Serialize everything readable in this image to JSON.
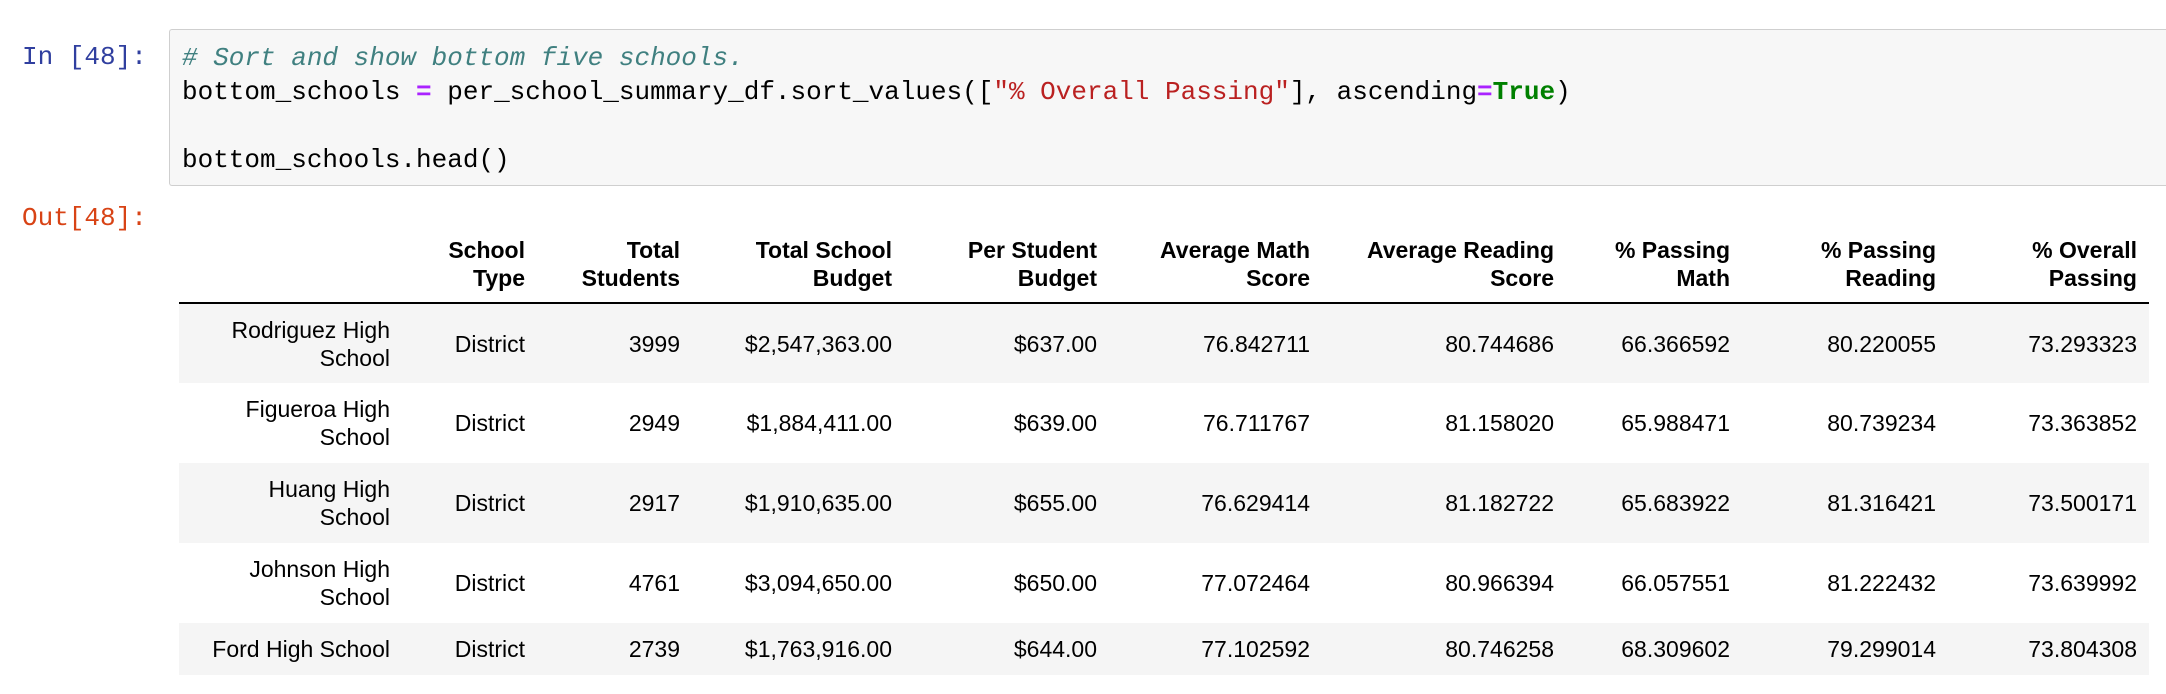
{
  "cell": {
    "in_prompt": "In [48]:",
    "out_prompt": "Out[48]:",
    "code": {
      "comment": "# Sort and show bottom five schools.",
      "var": "bottom_schools",
      "assign": "=",
      "expr_start": "per_school_summary_df.sort_values([",
      "string": "\"% Overall Passing\"",
      "expr_mid": "], ascending",
      "eq": "=",
      "keyword": "True",
      "expr_end": ")",
      "line3": "bottom_schools.head()"
    }
  },
  "table": {
    "columns": [
      {
        "line1": "",
        "line2": ""
      },
      {
        "line1": "School",
        "line2": "Type"
      },
      {
        "line1": "Total",
        "line2": "Students"
      },
      {
        "line1": "Total School",
        "line2": "Budget"
      },
      {
        "line1": "Per Student",
        "line2": "Budget"
      },
      {
        "line1": "Average Math",
        "line2": "Score"
      },
      {
        "line1": "Average Reading",
        "line2": "Score"
      },
      {
        "line1": "% Passing",
        "line2": "Math"
      },
      {
        "line1": "% Passing",
        "line2": "Reading"
      },
      {
        "line1": "% Overall",
        "line2": "Passing"
      }
    ],
    "rows": [
      {
        "index_l1": "Rodriguez High",
        "index_l2": "School",
        "cells": [
          "District",
          "3999",
          "$2,547,363.00",
          "$637.00",
          "76.842711",
          "80.744686",
          "66.366592",
          "80.220055",
          "73.293323"
        ]
      },
      {
        "index_l1": "Figueroa High",
        "index_l2": "School",
        "cells": [
          "District",
          "2949",
          "$1,884,411.00",
          "$639.00",
          "76.711767",
          "81.158020",
          "65.988471",
          "80.739234",
          "73.363852"
        ]
      },
      {
        "index_l1": "Huang High",
        "index_l2": "School",
        "cells": [
          "District",
          "2917",
          "$1,910,635.00",
          "$655.00",
          "76.629414",
          "81.182722",
          "65.683922",
          "81.316421",
          "73.500171"
        ]
      },
      {
        "index_l1": "Johnson High",
        "index_l2": "School",
        "cells": [
          "District",
          "4761",
          "$3,094,650.00",
          "$650.00",
          "77.072464",
          "80.966394",
          "66.057551",
          "81.222432",
          "73.639992"
        ]
      },
      {
        "index_l1": "Ford High School",
        "index_l2": "",
        "cells": [
          "District",
          "2739",
          "$1,763,916.00",
          "$644.00",
          "77.102592",
          "80.746258",
          "68.309602",
          "79.299014",
          "73.804308"
        ]
      }
    ]
  }
}
